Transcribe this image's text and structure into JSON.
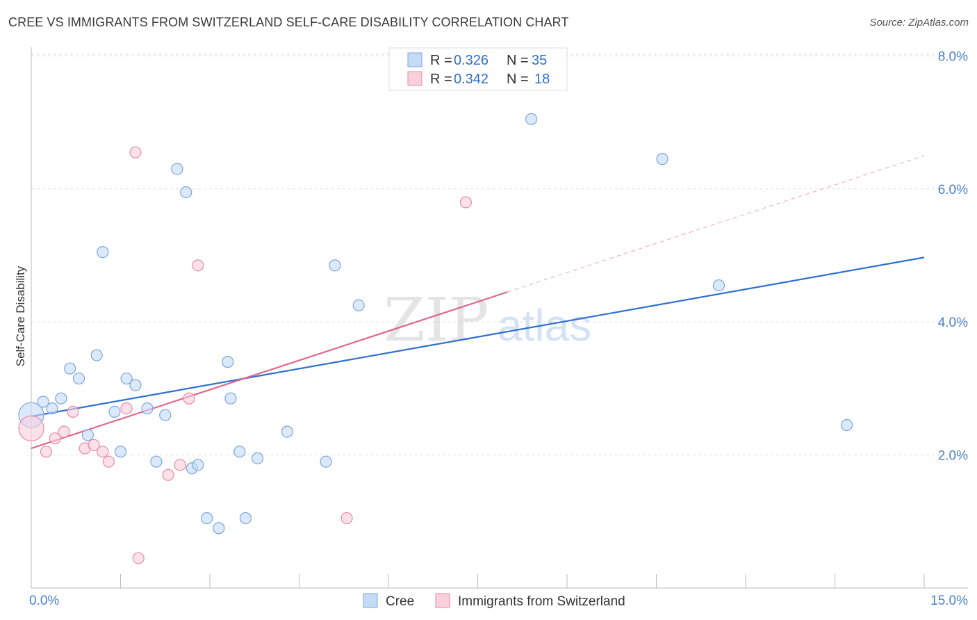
{
  "title": "CREE VS IMMIGRANTS FROM SWITZERLAND SELF-CARE DISABILITY CORRELATION CHART",
  "source": "Source: ZipAtlas.com",
  "watermark": {
    "zip": "ZIP",
    "atlas": "atlas"
  },
  "legend": {
    "rows": [
      {
        "r_label": "R =",
        "r_value": "0.326",
        "n_label": "N =",
        "n_value": "35",
        "color": "#a8c8f0"
      },
      {
        "r_label": "R =",
        "r_value": "0.342",
        "n_label": "N =",
        "n_value": "18",
        "color": "#f5b8c8"
      }
    ]
  },
  "colors": {
    "cree_fill": "#c5daf5",
    "cree_stroke": "#7aa6e0",
    "cree_line": "#2f6fcf",
    "swiss_fill": "#f9cfdb",
    "swiss_stroke": "#e98aa6",
    "swiss_line": "#e0668e",
    "grid": "#dddddd",
    "axis_text": "#4a7fd0"
  },
  "chart_data": {
    "type": "scatter",
    "title": "CREE VS IMMIGRANTS FROM SWITZERLAND SELF-CARE DISABILITY CORRELATION CHART",
    "xlabel": "",
    "ylabel": "Self-Care Disability",
    "xlim": [
      0,
      15
    ],
    "ylim": [
      0,
      8.2
    ],
    "x_tick_labels": [
      "0.0%",
      "15.0%"
    ],
    "y_ticks": [
      2,
      4,
      6,
      8
    ],
    "y_tick_labels": [
      "2.0%",
      "4.0%",
      "6.0%",
      "8.0%"
    ],
    "grid": true,
    "legend_position": "top-center",
    "series": [
      {
        "name": "Cree",
        "points": [
          [
            0.0,
            2.6
          ],
          [
            0.2,
            2.8
          ],
          [
            0.35,
            2.7
          ],
          [
            0.5,
            2.85
          ],
          [
            0.65,
            3.3
          ],
          [
            0.8,
            3.15
          ],
          [
            0.95,
            2.3
          ],
          [
            1.1,
            3.5
          ],
          [
            1.2,
            5.05
          ],
          [
            1.4,
            2.65
          ],
          [
            1.5,
            2.05
          ],
          [
            1.6,
            3.15
          ],
          [
            1.75,
            3.05
          ],
          [
            1.95,
            2.7
          ],
          [
            2.1,
            1.9
          ],
          [
            2.25,
            2.6
          ],
          [
            2.45,
            6.3
          ],
          [
            2.6,
            5.95
          ],
          [
            2.7,
            1.8
          ],
          [
            2.8,
            1.85
          ],
          [
            2.95,
            1.05
          ],
          [
            3.15,
            0.9
          ],
          [
            3.3,
            3.4
          ],
          [
            3.35,
            2.85
          ],
          [
            3.5,
            2.05
          ],
          [
            3.6,
            1.05
          ],
          [
            3.8,
            1.95
          ],
          [
            4.3,
            2.35
          ],
          [
            4.95,
            1.9
          ],
          [
            5.1,
            4.85
          ],
          [
            5.5,
            4.25
          ],
          [
            8.4,
            7.05
          ],
          [
            10.6,
            6.45
          ],
          [
            11.55,
            4.55
          ],
          [
            13.7,
            2.45
          ]
        ],
        "trend": [
          [
            0.0,
            2.58
          ],
          [
            15.0,
            4.97
          ]
        ]
      },
      {
        "name": "Immigrants from Switzerland",
        "points": [
          [
            0.0,
            2.4
          ],
          [
            0.25,
            2.05
          ],
          [
            0.4,
            2.25
          ],
          [
            0.55,
            2.35
          ],
          [
            0.7,
            2.65
          ],
          [
            0.9,
            2.1
          ],
          [
            1.05,
            2.15
          ],
          [
            1.2,
            2.05
          ],
          [
            1.3,
            1.9
          ],
          [
            1.6,
            2.7
          ],
          [
            1.75,
            6.55
          ],
          [
            1.8,
            0.45
          ],
          [
            2.3,
            1.7
          ],
          [
            2.5,
            1.85
          ],
          [
            2.65,
            2.85
          ],
          [
            2.8,
            4.85
          ],
          [
            5.3,
            1.05
          ],
          [
            7.3,
            5.8
          ]
        ],
        "trend": [
          [
            0.0,
            2.1
          ],
          [
            8.0,
            4.45
          ]
        ],
        "trend_extension": [
          [
            8.0,
            4.45
          ],
          [
            15.0,
            6.5
          ]
        ]
      }
    ]
  },
  "bottom_legend": [
    {
      "label": "Cree"
    },
    {
      "label": "Immigrants from Switzerland"
    }
  ]
}
